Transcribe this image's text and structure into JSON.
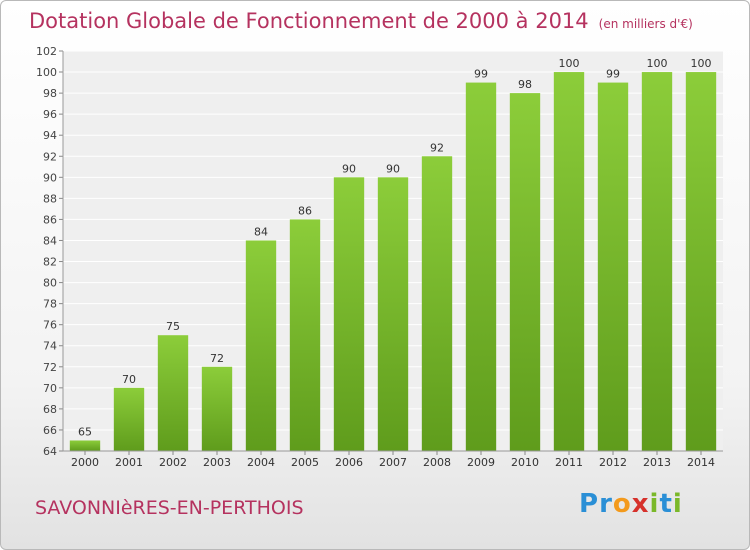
{
  "chart_data": {
    "type": "bar",
    "title": "Dotation Globale de Fonctionnement de 2000 à 2014",
    "subtitle": "(en milliers d'€)",
    "categories": [
      "2000",
      "2001",
      "2002",
      "2003",
      "2004",
      "2005",
      "2006",
      "2007",
      "2008",
      "2009",
      "2010",
      "2011",
      "2012",
      "2013",
      "2014"
    ],
    "values": [
      65,
      70,
      75,
      72,
      84,
      86,
      90,
      90,
      92,
      99,
      98,
      100,
      99,
      100,
      100
    ],
    "ylim": [
      64,
      102
    ],
    "yticks": [
      64,
      66,
      68,
      70,
      72,
      74,
      76,
      78,
      80,
      82,
      84,
      86,
      88,
      90,
      92,
      94,
      96,
      98,
      100,
      102
    ],
    "grid": true,
    "xlabel": "",
    "ylabel": "",
    "bar_color": "#7cbb2b"
  },
  "footer": {
    "commune": "SAVONNIèRES-EN-PERTHOIS",
    "logo_letters": [
      {
        "ch": "P",
        "color": "#2a8fd6"
      },
      {
        "ch": "r",
        "color": "#2a8fd6"
      },
      {
        "ch": "o",
        "color": "#f39a1c"
      },
      {
        "ch": "x",
        "color": "#d6312b"
      },
      {
        "ch": "i",
        "color": "#7ab829"
      },
      {
        "ch": "t",
        "color": "#2a8fd6"
      },
      {
        "ch": "i",
        "color": "#7ab829"
      }
    ]
  }
}
